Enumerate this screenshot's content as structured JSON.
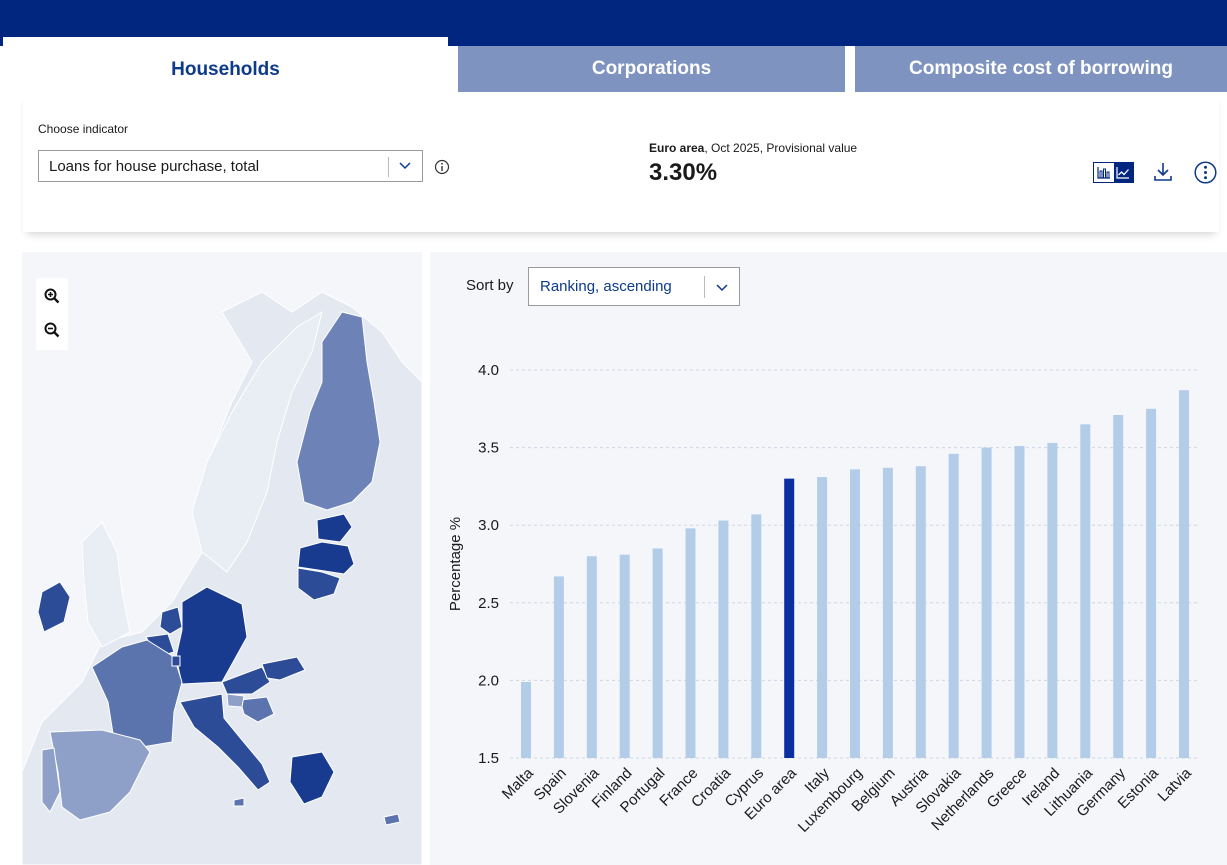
{
  "tabs": [
    {
      "label": "Households"
    },
    {
      "label": "Corporations"
    },
    {
      "label": "Composite cost of borrowing"
    }
  ],
  "indicator": {
    "label": "Choose indicator",
    "selected": "Loans for house purchase, total"
  },
  "kpi": {
    "region": "Euro area",
    "caption_rest": ", Oct 2025, Provisional value",
    "value": "3.30%"
  },
  "sort": {
    "label": "Sort by",
    "selected": "Ranking, ascending"
  },
  "colors": {
    "brand": "#00267f",
    "bar": "#b3cde9",
    "highlight": "#0b2fa0",
    "map_dark": "#183a8f",
    "map_mid": "#5b74ad",
    "map_light": "#8ea0c8",
    "map_none": "#e4e9f1"
  },
  "icons": [
    "info-icon",
    "bar-chart-icon",
    "line-chart-icon",
    "download-icon",
    "more-options-icon",
    "zoom-in-icon",
    "zoom-out-icon",
    "chevron-down-icon"
  ],
  "chart_data": {
    "type": "bar",
    "ylabel": "Percentage %",
    "xlabel": "",
    "ylim": [
      1.5,
      4.0
    ],
    "yticks": [
      "1.5",
      "2.0",
      "2.5",
      "3.0",
      "3.5",
      "4.0"
    ],
    "grid": true,
    "highlight": "Euro area",
    "categories": [
      "Malta",
      "Spain",
      "Slovenia",
      "Finland",
      "Portugal",
      "France",
      "Croatia",
      "Cyprus",
      "Euro area",
      "Italy",
      "Luxembourg",
      "Belgium",
      "Austria",
      "Slovakia",
      "Netherlands",
      "Greece",
      "Ireland",
      "Lithuania",
      "Germany",
      "Estonia",
      "Latvia"
    ],
    "values": [
      1.99,
      2.67,
      2.8,
      2.81,
      2.85,
      2.98,
      3.03,
      3.07,
      3.3,
      3.31,
      3.36,
      3.37,
      3.38,
      3.46,
      3.5,
      3.51,
      3.53,
      3.65,
      3.71,
      3.75,
      3.87
    ]
  }
}
